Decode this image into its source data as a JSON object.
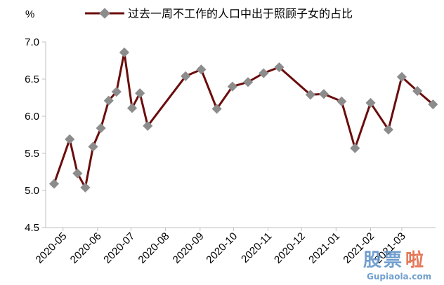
{
  "chart_data": {
    "type": "line",
    "title": "",
    "y_unit_label": "%",
    "xlabel": "",
    "ylabel": "",
    "ylim": [
      4.5,
      7.0
    ],
    "y_ticks": [
      "4.5",
      "5.0",
      "5.5",
      "6.0",
      "6.5",
      "7.0"
    ],
    "x_range": [
      "2020-04-23",
      "2021-03-25"
    ],
    "x_tick_labels": [
      {
        "date": "2020-05-01",
        "label": "2020-05"
      },
      {
        "date": "2020-06-01",
        "label": "2020-06"
      },
      {
        "date": "2020-07-01",
        "label": "2020-07"
      },
      {
        "date": "2020-08-01",
        "label": "2020-08"
      },
      {
        "date": "2020-09-01",
        "label": "2020-09"
      },
      {
        "date": "2020-10-01",
        "label": "2020-10"
      },
      {
        "date": "2020-11-01",
        "label": "2020-11"
      },
      {
        "date": "2020-12-01",
        "label": "2020-12"
      },
      {
        "date": "2021-01-01",
        "label": "2021-01"
      },
      {
        "date": "2021-02-01",
        "label": "2021-02"
      },
      {
        "date": "2021-03-01",
        "label": "2021-03"
      }
    ],
    "grid": false,
    "legend_position": "top",
    "series": [
      {
        "name": "过去一周不工作的人口中出于照顾子女的占比",
        "color": "#6b0c0c",
        "marker_color": "#8c8c8c",
        "points": [
          {
            "x": "2020-04-23",
            "y": 5.09
          },
          {
            "x": "2020-05-07",
            "y": 5.69
          },
          {
            "x": "2020-05-14",
            "y": 5.23
          },
          {
            "x": "2020-05-21",
            "y": 5.04
          },
          {
            "x": "2020-05-28",
            "y": 5.59
          },
          {
            "x": "2020-06-04",
            "y": 5.84
          },
          {
            "x": "2020-06-11",
            "y": 6.21
          },
          {
            "x": "2020-06-18",
            "y": 6.33
          },
          {
            "x": "2020-06-25",
            "y": 6.86
          },
          {
            "x": "2020-07-02",
            "y": 6.11
          },
          {
            "x": "2020-07-09",
            "y": 6.31
          },
          {
            "x": "2020-07-16",
            "y": 5.87
          },
          {
            "x": "2020-08-19",
            "y": 6.54
          },
          {
            "x": "2020-09-02",
            "y": 6.63
          },
          {
            "x": "2020-09-16",
            "y": 6.1
          },
          {
            "x": "2020-09-30",
            "y": 6.4
          },
          {
            "x": "2020-10-14",
            "y": 6.46
          },
          {
            "x": "2020-10-28",
            "y": 6.58
          },
          {
            "x": "2020-11-11",
            "y": 6.66
          },
          {
            "x": "2020-12-09",
            "y": 6.29
          },
          {
            "x": "2020-12-21",
            "y": 6.3
          },
          {
            "x": "2021-01-06",
            "y": 6.2
          },
          {
            "x": "2021-01-18",
            "y": 5.57
          },
          {
            "x": "2021-02-01",
            "y": 6.18
          },
          {
            "x": "2021-02-17",
            "y": 5.82
          },
          {
            "x": "2021-03-01",
            "y": 6.53
          },
          {
            "x": "2021-03-15",
            "y": 6.34
          },
          {
            "x": "2021-03-29",
            "y": 6.16
          }
        ]
      }
    ]
  },
  "watermark": {
    "chars": [
      "股",
      "票",
      "啦"
    ],
    "url": "Gupiaola.com",
    "colors": [
      "#5a8fc6",
      "#e0603a"
    ]
  }
}
